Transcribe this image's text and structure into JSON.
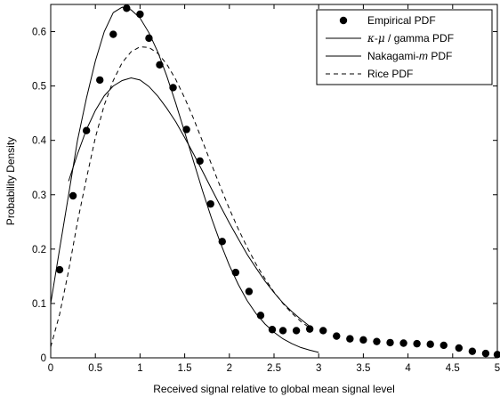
{
  "chart_data": {
    "type": "line",
    "xlabel": "Received signal relative to global mean signal level",
    "ylabel": "Probability Density",
    "xlim": [
      0,
      5
    ],
    "ylim": [
      0,
      0.65
    ],
    "x_ticks": [
      "0",
      "0.5",
      "1",
      "1.5",
      "2",
      "2.5",
      "3",
      "3.5",
      "4",
      "4.5",
      "5"
    ],
    "y_ticks": [
      "0",
      "0.1",
      "0.2",
      "0.3",
      "0.4",
      "0.5",
      "0.6"
    ],
    "grid": false,
    "legend_position": "top-right",
    "series": [
      {
        "name": "Empirical PDF",
        "kind": "markers",
        "x": [
          0.1,
          0.25,
          0.4,
          0.55,
          0.7,
          0.85,
          1.0,
          1.1,
          1.22,
          1.37,
          1.52,
          1.67,
          1.79,
          1.92,
          2.07,
          2.22,
          2.35,
          2.48,
          2.6,
          2.75,
          2.9,
          3.05,
          3.2,
          3.35,
          3.5,
          3.65,
          3.8,
          3.95,
          4.1,
          4.25,
          4.4,
          4.57,
          4.72,
          4.87,
          5.0
        ],
        "y": [
          0.162,
          0.298,
          0.418,
          0.511,
          0.595,
          0.643,
          0.632,
          0.588,
          0.539,
          0.497,
          0.42,
          0.362,
          0.283,
          0.214,
          0.157,
          0.122,
          0.078,
          0.052,
          0.05,
          0.05,
          0.053,
          0.05,
          0.04,
          0.035,
          0.033,
          0.03,
          0.028,
          0.027,
          0.026,
          0.025,
          0.023,
          0.018,
          0.012,
          0.008,
          0.006
        ]
      },
      {
        "name": "κ-μ / gamma PDF",
        "name_parts": [
          "κ",
          "-",
          "μ",
          " / gamma PDF"
        ],
        "kind": "solid",
        "x": [
          0,
          0.1,
          0.2,
          0.3,
          0.4,
          0.5,
          0.6,
          0.7,
          0.8,
          0.9,
          1.0,
          1.1,
          1.2,
          1.3,
          1.4,
          1.5,
          1.6,
          1.7,
          1.8,
          1.9,
          2.0,
          2.1,
          2.2,
          2.3,
          2.4,
          2.5,
          2.6,
          2.7,
          2.8,
          2.9,
          3.0
        ],
        "y": [
          0.1,
          0.2,
          0.3,
          0.4,
          0.478,
          0.546,
          0.6,
          0.635,
          0.645,
          0.64,
          0.625,
          0.598,
          0.562,
          0.518,
          0.468,
          0.415,
          0.361,
          0.307,
          0.257,
          0.211,
          0.17,
          0.135,
          0.105,
          0.081,
          0.062,
          0.047,
          0.035,
          0.026,
          0.019,
          0.014,
          0.01
        ]
      },
      {
        "name": "Nakagami-m PDF",
        "name_parts": [
          "Nakagami-",
          "m",
          " PDF"
        ],
        "kind": "solid",
        "x": [
          0.2,
          0.3,
          0.4,
          0.5,
          0.6,
          0.7,
          0.8,
          0.9,
          1.0,
          1.1,
          1.2,
          1.3,
          1.4,
          1.5,
          1.6,
          1.7,
          1.8,
          1.9,
          2.0,
          2.1,
          2.2,
          2.3,
          2.4,
          2.5,
          2.6,
          2.7,
          2.8,
          2.9
        ],
        "y": [
          0.325,
          0.375,
          0.42,
          0.455,
          0.482,
          0.5,
          0.51,
          0.515,
          0.511,
          0.499,
          0.481,
          0.459,
          0.434,
          0.405,
          0.375,
          0.343,
          0.311,
          0.279,
          0.248,
          0.219,
          0.19,
          0.165,
          0.141,
          0.12,
          0.101,
          0.085,
          0.071,
          0.058
        ]
      },
      {
        "name": "Rice PDF",
        "kind": "dashed",
        "x": [
          0,
          0.1,
          0.2,
          0.3,
          0.4,
          0.5,
          0.6,
          0.7,
          0.8,
          0.9,
          1.0,
          1.1,
          1.2,
          1.3,
          1.4,
          1.5,
          1.6,
          1.7,
          1.8,
          1.9,
          2.0,
          2.1,
          2.2,
          2.3,
          2.4,
          2.5,
          2.6,
          2.7,
          2.8,
          2.9
        ],
        "y": [
          0.02,
          0.08,
          0.16,
          0.25,
          0.33,
          0.405,
          0.465,
          0.51,
          0.543,
          0.563,
          0.572,
          0.571,
          0.56,
          0.54,
          0.512,
          0.478,
          0.44,
          0.398,
          0.356,
          0.314,
          0.274,
          0.237,
          0.203,
          0.172,
          0.145,
          0.121,
          0.1,
          0.082,
          0.067,
          0.055
        ]
      }
    ]
  }
}
